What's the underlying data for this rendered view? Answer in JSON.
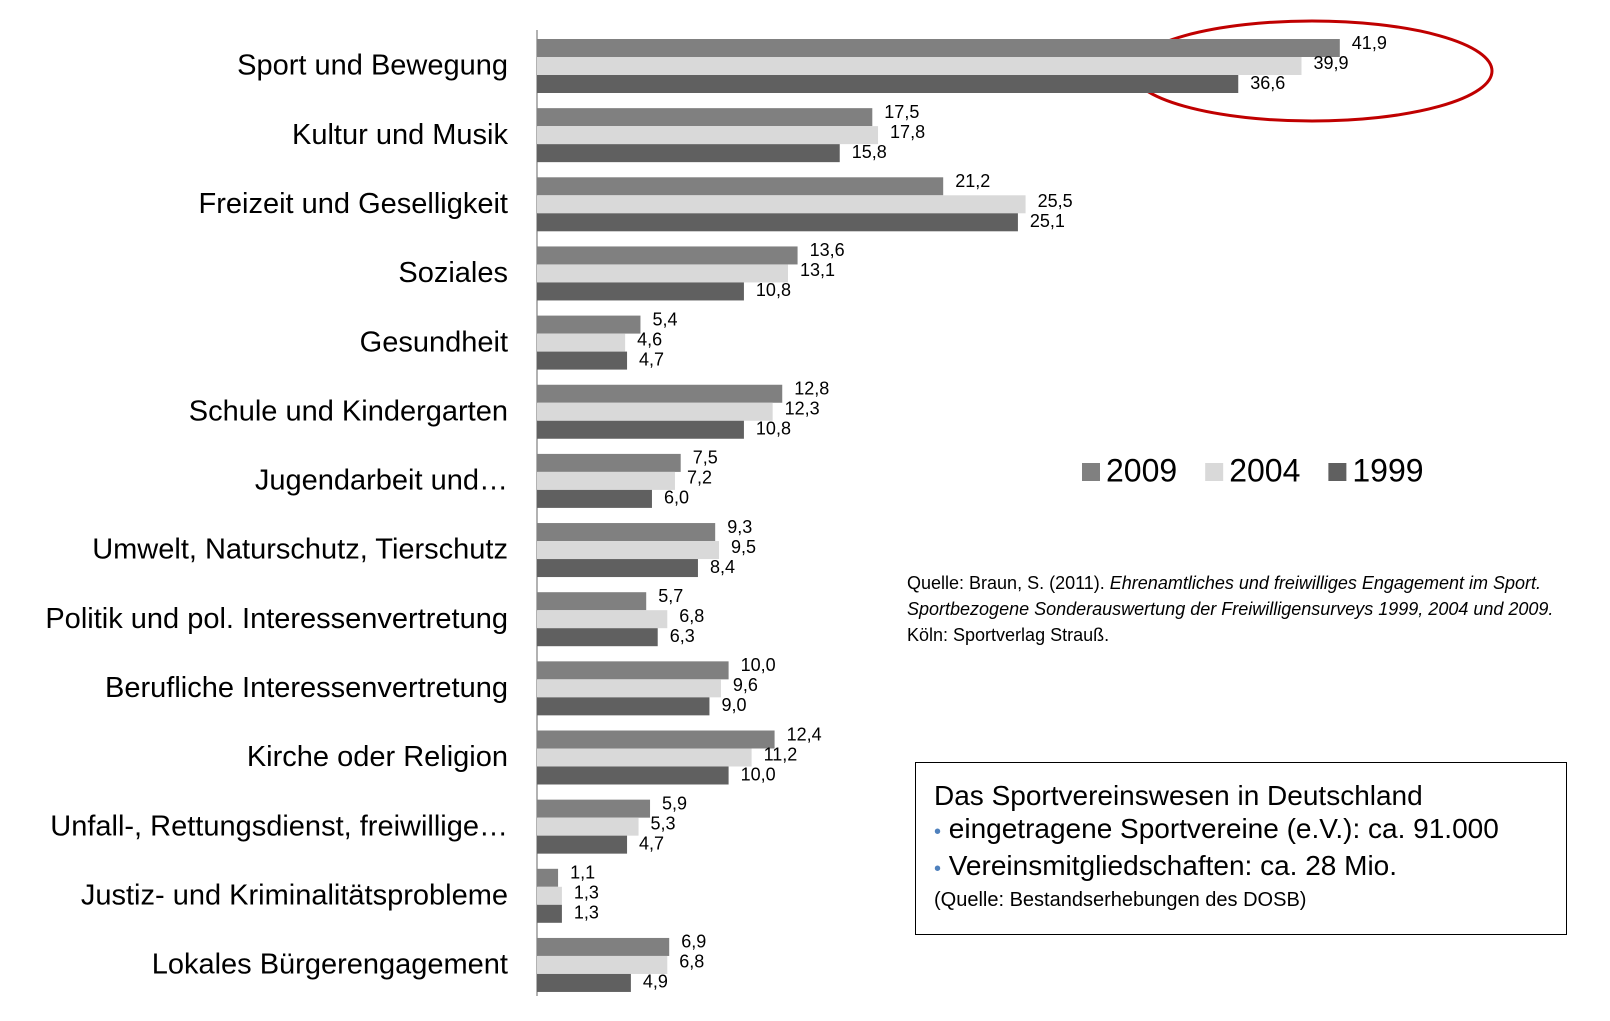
{
  "chart_data": {
    "type": "hbar",
    "categories": [
      "Sport und Bewegung",
      "Kultur und Musik",
      "Freizeit und Geselligkeit",
      "Soziales",
      "Gesundheit",
      "Schule und Kindergarten",
      "Jugendarbeit und…",
      "Umwelt, Naturschutz, Tierschutz",
      "Politik und pol. Interessenvertretung",
      "Berufliche Interessenvertretung",
      "Kirche oder Religion",
      "Unfall-, Rettungsdienst, freiwillige…",
      "Justiz- und Kriminalitätsprobleme",
      "Lokales Bürgerengagement"
    ],
    "series": [
      {
        "name": "2009",
        "color": "#808080",
        "values": [
          41.9,
          17.5,
          21.2,
          13.6,
          5.4,
          12.8,
          7.5,
          9.3,
          5.7,
          10.0,
          12.4,
          5.9,
          1.1,
          6.9
        ],
        "value_labels": [
          "41,9",
          "17,5",
          "21,2",
          "13,6",
          "5,4",
          "12,8",
          "7,5",
          "9,3",
          "5,7",
          "10,0",
          "12,4",
          "5,9",
          "1,1",
          "6,9"
        ]
      },
      {
        "name": "2004",
        "color": "#d9d9d9",
        "values": [
          39.9,
          17.8,
          25.5,
          13.1,
          4.6,
          12.3,
          7.2,
          9.5,
          6.8,
          9.6,
          11.2,
          5.3,
          1.3,
          6.8
        ],
        "value_labels": [
          "39,9",
          "17,8",
          "25,5",
          "13,1",
          "4,6",
          "12,3",
          "7,2",
          "9,5",
          "6,8",
          "9,6",
          "11,2",
          "5,3",
          "1,3",
          "6,8"
        ]
      },
      {
        "name": "1999",
        "color": "#606060",
        "values": [
          36.6,
          15.8,
          25.1,
          10.8,
          4.7,
          10.8,
          6.0,
          8.4,
          6.3,
          9.0,
          10.0,
          4.7,
          1.3,
          4.9
        ],
        "value_labels": [
          "36,6",
          "15,8",
          "25,1",
          "10,8",
          "4,7",
          "10,8",
          "6,0",
          "8,4",
          "6,3",
          "9,0",
          "10,0",
          "4,7",
          "1,3",
          "4,9"
        ]
      }
    ],
    "xlim": [
      0,
      50
    ]
  },
  "source": {
    "parts": [
      {
        "text": "Quelle: Braun, S. (2011). ",
        "italic": false
      },
      {
        "text": "Ehrenamtliches und freiwilliges Engagement im Sport. Sportbezogene Sonderauswertung der Freiwilligensurveys 1999, 2004 und 2009.",
        "italic": true
      },
      {
        "text": " Köln: Sportverlag Strauß.",
        "italic": false
      }
    ]
  },
  "info_box": {
    "title": "Das Sportvereinswesen in Deutschland",
    "items": [
      "eingetragene Sportvereine (e.V.): ca. 91.000",
      "Vereinsmitgliedschaften: ca. 28 Mio."
    ],
    "note": "(Quelle: Bestandserhebungen des DOSB)"
  }
}
